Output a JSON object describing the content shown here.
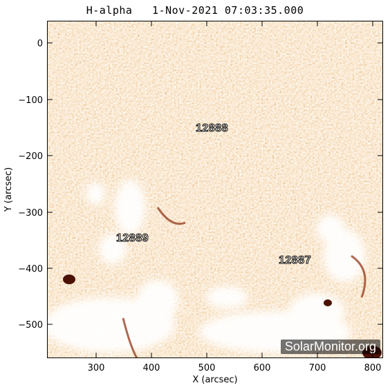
{
  "title": "H-alpha   1-Nov-2021 07:03:35.000",
  "axes": {
    "x_label": "X (arcsec)",
    "y_label": "Y (arcsec)",
    "x_ticks": [
      "300",
      "400",
      "500",
      "600",
      "700",
      "800"
    ],
    "y_ticks": [
      "0",
      "−100",
      "−200",
      "−300",
      "−400",
      "−500"
    ]
  },
  "regions": [
    {
      "id": "12888",
      "label": "12888"
    },
    {
      "id": "12889",
      "label": "12889"
    },
    {
      "id": "12887",
      "label": "12887"
    }
  ],
  "watermark": "SolarMonitor.org",
  "colors": {
    "base": "#e8823a",
    "dark": "#6a1e08",
    "bright": "#ffffff"
  }
}
